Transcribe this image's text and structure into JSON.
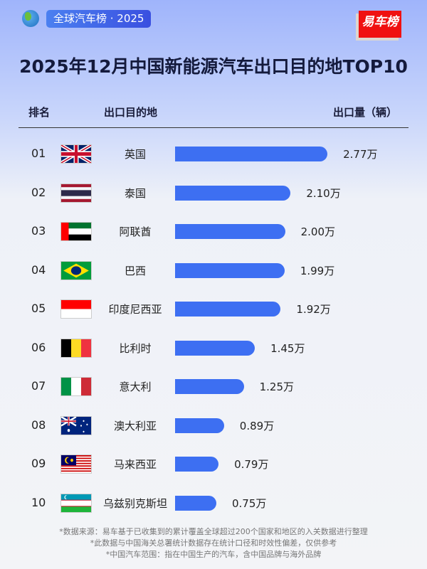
{
  "header": {
    "badge": "全球汽车榜 · 2025",
    "logo": "易车榜",
    "globe_icon": "globe-icon"
  },
  "chart_data": {
    "type": "bar",
    "title": "2025年12月中国新能源汽车出口目的地TOP10",
    "columns": [
      "排名",
      "出口目的地",
      "出口量（辆）"
    ],
    "ranks": [
      "01",
      "02",
      "03",
      "04",
      "05",
      "06",
      "07",
      "08",
      "09",
      "10"
    ],
    "categories": [
      "英国",
      "泰国",
      "阿联酋",
      "巴西",
      "印度尼西亚",
      "比利时",
      "意大利",
      "澳大利亚",
      "马来西亚",
      "乌兹别克斯坦"
    ],
    "flags": [
      "uk",
      "thailand",
      "uae",
      "brazil",
      "indonesia",
      "belgium",
      "italy",
      "australia",
      "malaysia",
      "uzbekistan"
    ],
    "values": [
      2.77,
      2.1,
      2.0,
      1.99,
      1.92,
      1.45,
      1.25,
      0.89,
      0.79,
      0.75
    ],
    "labels": [
      "2.77万",
      "2.10万",
      "2.00万",
      "1.99万",
      "1.92万",
      "1.45万",
      "1.25万",
      "0.89万",
      "0.79万",
      "0.75万"
    ],
    "unit": "万",
    "bar_color": "#3d6ff2"
  },
  "notes": [
    "*数据来源：易车基于已收集到的累计覆盖全球超过200个国家和地区的入关数据进行整理",
    "*此数据与中国海关总署统计数据存在统计口径和时效性偏差，仅供参考",
    "*中国汽车范围：指在中国生产的汽车，含中国品牌与海外品牌"
  ]
}
